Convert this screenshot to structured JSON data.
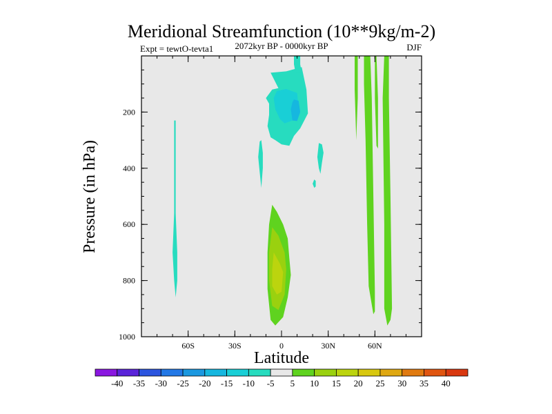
{
  "chart_data": {
    "type": "heatmap",
    "title": "Meridional Streamfunction (10**9kg/m-2)",
    "subtitle": "2072kyr BP - 0000kyr BP",
    "left_annotation": "Expt = tewtO-tevta1",
    "right_annotation": "DJF",
    "xlabel": "Latitude",
    "ylabel": "Pressure (in hPa)",
    "xlim": [
      -90,
      90
    ],
    "ylim": [
      1000,
      0
    ],
    "x_ticks": [
      {
        "value": -60,
        "label": "60S"
      },
      {
        "value": -30,
        "label": "30S"
      },
      {
        "value": 0,
        "label": "0"
      },
      {
        "value": 30,
        "label": "30N"
      },
      {
        "value": 60,
        "label": "60N"
      }
    ],
    "x_minor_step": 10,
    "y_ticks": [
      {
        "value": 200,
        "label": "200"
      },
      {
        "value": 400,
        "label": "400"
      },
      {
        "value": 600,
        "label": "600"
      },
      {
        "value": 800,
        "label": "800"
      },
      {
        "value": 1000,
        "label": "1000"
      }
    ],
    "y_minor_step": 50,
    "background_color": "#e8e8e8",
    "colorbar": {
      "levels": [
        -40,
        -35,
        -30,
        -25,
        -20,
        -15,
        -10,
        -5,
        5,
        10,
        15,
        20,
        25,
        30,
        35,
        40
      ],
      "labels": [
        "-40",
        "-35",
        "-30",
        "-25",
        "-20",
        "-15",
        "-10",
        "-5",
        "5",
        "10",
        "15",
        "20",
        "25",
        "30",
        "35",
        "40"
      ],
      "colors": [
        "#8a17e0",
        "#5a24d9",
        "#2c55df",
        "#2378e6",
        "#1b98e0",
        "#16b7df",
        "#19cfd6",
        "#27dcbf",
        "#e8e8e8",
        "#5fd31f",
        "#9ad10f",
        "#bcd40e",
        "#d8c80f",
        "#dfa812",
        "#e07a10",
        "#e05510",
        "#d93810"
      ]
    },
    "regions": [
      {
        "name": "upper-tropical-cell",
        "value": -7,
        "points": [
          [
            -7,
            60
          ],
          [
            3,
            55
          ],
          [
            13,
            40
          ],
          [
            16,
            120
          ],
          [
            17,
            205
          ],
          [
            12,
            258
          ],
          [
            8,
            285
          ],
          [
            5,
            320
          ],
          [
            0,
            315
          ],
          [
            -4,
            300
          ],
          [
            -7,
            290
          ],
          [
            -9,
            250
          ],
          [
            -8,
            210
          ],
          [
            -8,
            170
          ],
          [
            -10,
            150
          ],
          [
            -6,
            120
          ],
          [
            -2,
            115
          ]
        ]
      },
      {
        "name": "upper-tropical-stratosphere-jet",
        "value": -7,
        "points": [
          [
            8,
            0
          ],
          [
            12,
            0
          ],
          [
            12,
            30
          ],
          [
            13,
            60
          ],
          [
            9,
            60
          ],
          [
            8,
            30
          ]
        ]
      },
      {
        "name": "upper-tropical-core",
        "value": -12,
        "points": [
          [
            -3,
            125
          ],
          [
            3,
            118
          ],
          [
            10,
            132
          ],
          [
            11,
            185
          ],
          [
            7,
            230
          ],
          [
            2,
            240
          ],
          [
            -1,
            225
          ],
          [
            -4,
            190
          ],
          [
            -5,
            150
          ]
        ]
      },
      {
        "name": "upper-tropical-inner",
        "value": -17,
        "points": [
          [
            8,
            155
          ],
          [
            11,
            160
          ],
          [
            12,
            200
          ],
          [
            10,
            232
          ],
          [
            7,
            230
          ],
          [
            6,
            190
          ],
          [
            7,
            165
          ]
        ]
      },
      {
        "name": "sh-thin-column",
        "value": -7,
        "points": [
          [
            -69,
            230
          ],
          [
            -68,
            230
          ],
          [
            -68,
            560
          ],
          [
            -67,
            700
          ],
          [
            -67,
            800
          ],
          [
            -68,
            860
          ],
          [
            -69,
            800
          ],
          [
            -70,
            700
          ],
          [
            -69,
            560
          ]
        ]
      },
      {
        "name": "sh-subtropic-streak",
        "value": -7,
        "points": [
          [
            -14,
            305
          ],
          [
            -13,
            300
          ],
          [
            -12,
            345
          ],
          [
            -12,
            400
          ],
          [
            -13,
            470
          ],
          [
            -14,
            415
          ],
          [
            -15,
            360
          ]
        ]
      },
      {
        "name": "nh-subtropic-streak",
        "value": -7,
        "points": [
          [
            24,
            310
          ],
          [
            26,
            315
          ],
          [
            27,
            345
          ],
          [
            26,
            380
          ],
          [
            25,
            420
          ],
          [
            24,
            400
          ],
          [
            23,
            360
          ]
        ]
      },
      {
        "name": "nh-subtropic-dot",
        "value": -7,
        "points": [
          [
            21,
            440
          ],
          [
            22,
            445
          ],
          [
            22,
            465
          ],
          [
            21,
            470
          ],
          [
            20,
            455
          ]
        ]
      },
      {
        "name": "lower-tropical-cell",
        "value": 7,
        "points": [
          [
            -6,
            530
          ],
          [
            -3,
            555
          ],
          [
            1,
            600
          ],
          [
            4,
            650
          ],
          [
            5,
            720
          ],
          [
            6,
            780
          ],
          [
            4,
            860
          ],
          [
            1,
            930
          ],
          [
            -4,
            960
          ],
          [
            -7,
            940
          ],
          [
            -9,
            830
          ],
          [
            -9,
            700
          ],
          [
            -8,
            600
          ]
        ]
      },
      {
        "name": "lower-tropical-core",
        "value": 12,
        "points": [
          [
            -6,
            610
          ],
          [
            -2,
            640
          ],
          [
            2,
            700
          ],
          [
            3,
            760
          ],
          [
            2,
            850
          ],
          [
            -2,
            905
          ],
          [
            -6,
            890
          ],
          [
            -8,
            800
          ],
          [
            -8,
            700
          ]
        ]
      },
      {
        "name": "lower-tropical-inner",
        "value": 17,
        "points": [
          [
            -5,
            700
          ],
          [
            -1,
            740
          ],
          [
            1,
            770
          ],
          [
            0,
            840
          ],
          [
            -3,
            850
          ],
          [
            -6,
            820
          ],
          [
            -6,
            760
          ]
        ]
      },
      {
        "name": "nh-column-1",
        "value": 7,
        "points": [
          [
            47,
            0
          ],
          [
            49,
            0
          ],
          [
            49,
            150
          ],
          [
            48,
            300
          ],
          [
            47,
            120
          ]
        ]
      },
      {
        "name": "nh-column-2",
        "value": 7,
        "points": [
          [
            53,
            0
          ],
          [
            57,
            0
          ],
          [
            58,
            150
          ],
          [
            59,
            500
          ],
          [
            60,
            840
          ],
          [
            60,
            910
          ],
          [
            59,
            920
          ],
          [
            56,
            820
          ],
          [
            55,
            600
          ],
          [
            54,
            300
          ],
          [
            53,
            100
          ]
        ]
      },
      {
        "name": "nh-column-3",
        "value": 7,
        "points": [
          [
            60,
            0
          ],
          [
            61,
            0
          ],
          [
            62,
            150
          ],
          [
            62,
            330
          ],
          [
            61,
            320
          ],
          [
            60,
            150
          ]
        ]
      },
      {
        "name": "nh-column-4",
        "value": 7,
        "points": [
          [
            66,
            0
          ],
          [
            69,
            0
          ],
          [
            69,
            150
          ],
          [
            70,
            500
          ],
          [
            71,
            900
          ],
          [
            70,
            940
          ],
          [
            68,
            960
          ],
          [
            66,
            900
          ],
          [
            66,
            600
          ],
          [
            65,
            150
          ]
        ]
      }
    ]
  }
}
